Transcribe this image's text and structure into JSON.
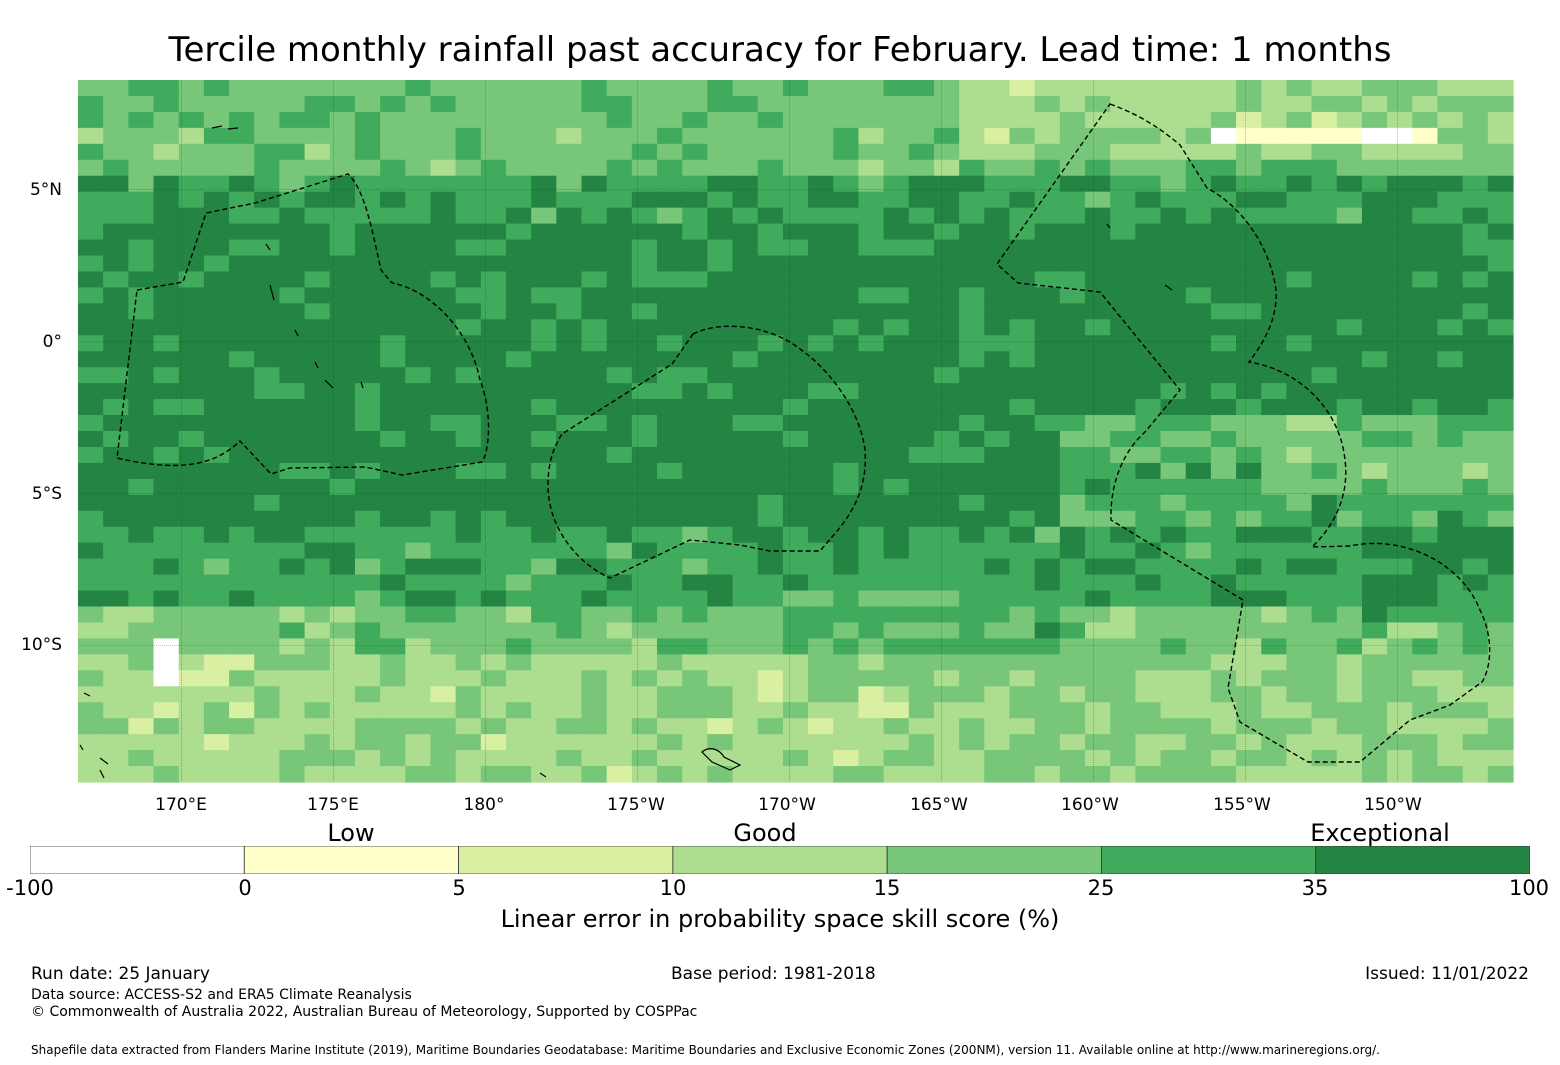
{
  "title": "Tercile monthly rainfall past accuracy for February. Lead time: 1 months",
  "map": {
    "lat_labels": [
      "5°N",
      "0°",
      "5°S",
      "10°S"
    ],
    "lon_labels": [
      "170°E",
      "175°E",
      "180°",
      "175°W",
      "170°W",
      "165°W",
      "160°W",
      "155°W",
      "150°W"
    ],
    "lat_range": [
      -14.5,
      8.6
    ],
    "lon_range": [
      166.6,
      213.8
    ]
  },
  "legend": {
    "qualitative": [
      "Low",
      "Good",
      "Exceptional"
    ],
    "ticks": [
      "-100",
      "0",
      "5",
      "10",
      "15",
      "25",
      "35",
      "100"
    ],
    "colors": [
      "#ffffff",
      "#ffffcc",
      "#d9f0a3",
      "#addd8e",
      "#78c679",
      "#41ab5d",
      "#238443"
    ],
    "label": "Linear error in probability space skill score (%)"
  },
  "footer": {
    "run_date": "Run date: 25 January",
    "base_period": "Base period: 1981-2018",
    "issued": "Issued: 11/01/2022",
    "data_source": "Data source: ACCESS-S2 and ERA5 Climate Reanalysis",
    "copyright": "© Commonwealth of Australia 2022, Australian Bureau of Meteorology, Supported by COSPPac",
    "shapefile": "Shapefile data extracted from Flanders Marine Institute (2019), Maritime Boundaries Geodatabase: Maritime Boundaries and Exclusive Economic Zones (200NM), version 11. Available online at http://www.marineregions.org/."
  }
}
